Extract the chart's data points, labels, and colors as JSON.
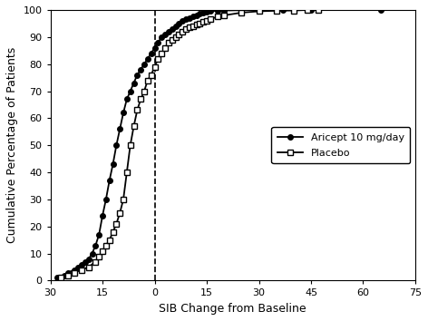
{
  "title": "",
  "xlabel": "SIB Change from Baseline",
  "ylabel": "Cumulative Percentage of Patients",
  "xlim": [
    30,
    -75
  ],
  "ylim": [
    0,
    100
  ],
  "xticks": [
    30,
    15,
    0,
    -15,
    -30,
    -45,
    -60,
    -75
  ],
  "yticks": [
    0,
    10,
    20,
    30,
    40,
    50,
    60,
    70,
    80,
    90,
    100
  ],
  "vline_x": 0,
  "legend_labels": [
    "Aricept 10 mg/day",
    "Placebo"
  ],
  "legend_loc": "center right",
  "aricept_x": [
    28,
    26,
    25,
    23,
    22,
    21,
    20,
    19,
    18,
    17,
    16,
    15,
    14,
    13,
    12,
    11,
    10,
    9,
    8,
    7,
    6,
    5,
    4,
    3,
    2,
    1,
    0,
    -1,
    -2,
    -3,
    -4,
    -5,
    -6,
    -7,
    -8,
    -9,
    -10,
    -11,
    -12,
    -13,
    -14,
    -15,
    -16,
    -18,
    -20,
    -25,
    -30,
    -37,
    -45,
    -65
  ],
  "aricept_y": [
    1,
    2,
    3,
    4,
    5,
    6,
    7,
    8,
    10,
    13,
    17,
    24,
    30,
    37,
    43,
    50,
    56,
    62,
    67,
    70,
    73,
    76,
    78,
    80,
    82,
    84,
    86,
    88,
    90,
    91,
    92,
    93,
    94,
    95,
    96,
    96.5,
    97,
    97.5,
    98,
    98.5,
    99,
    99.2,
    99.5,
    99.7,
    99.8,
    99.9,
    100,
    100,
    100,
    100
  ],
  "placebo_x": [
    27,
    25,
    23,
    21,
    19,
    17,
    16,
    15,
    14,
    13,
    12,
    11,
    10,
    9,
    8,
    7,
    6,
    5,
    4,
    3,
    2,
    1,
    0,
    -1,
    -2,
    -3,
    -4,
    -5,
    -6,
    -7,
    -8,
    -9,
    -10,
    -11,
    -12,
    -13,
    -14,
    -15,
    -16,
    -18,
    -20,
    -25,
    -30,
    -35,
    -40,
    -44,
    -47
  ],
  "placebo_y": [
    1,
    2,
    3,
    4,
    5,
    7,
    9,
    11,
    13,
    15,
    18,
    21,
    25,
    30,
    40,
    50,
    57,
    63,
    67,
    70,
    74,
    76,
    79,
    82,
    84,
    86,
    88,
    89,
    90,
    91,
    92,
    93,
    93.5,
    94,
    94.5,
    95,
    95.5,
    96,
    96.5,
    97.5,
    98,
    99,
    99.5,
    99.7,
    99.8,
    100,
    100
  ],
  "line_color": "#000000",
  "bg_color": "#ffffff",
  "marker_filled": "o",
  "marker_open": "s",
  "marker_size": 4,
  "linewidth": 1.3,
  "fontsize_axis_label": 9,
  "fontsize_tick": 8,
  "fontsize_legend": 8
}
